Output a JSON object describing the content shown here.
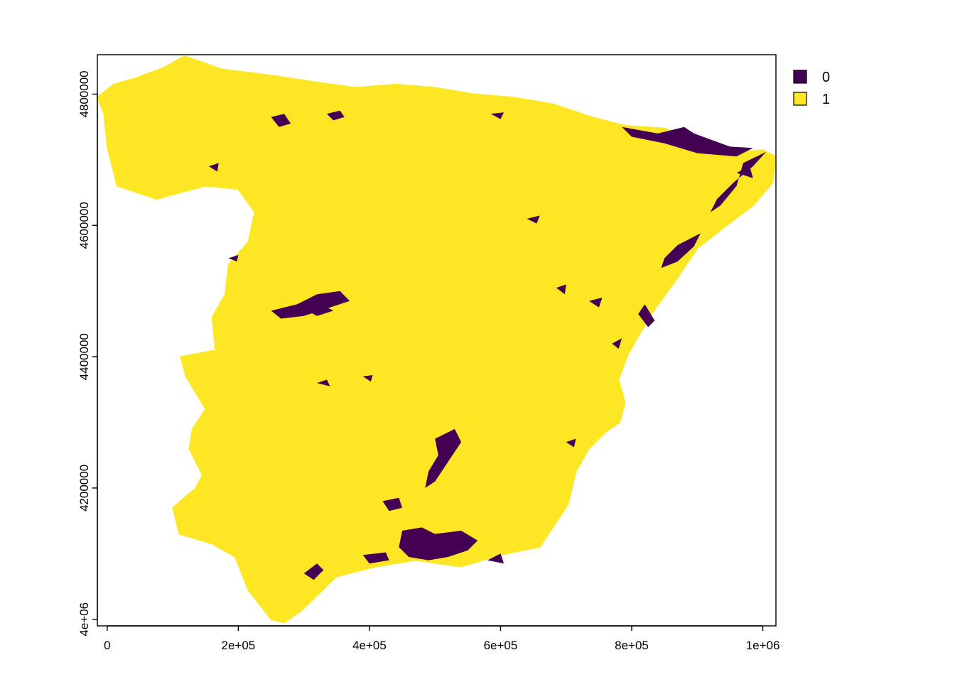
{
  "chart_data": {
    "type": "raster-map",
    "title": "",
    "xlabel": "",
    "ylabel": "",
    "xlim": [
      -15000,
      1020000
    ],
    "ylim": [
      3990000,
      4860000
    ],
    "x_ticks": [
      0,
      200000,
      400000,
      600000,
      800000,
      1000000
    ],
    "x_tick_labels": [
      "0",
      "2e+05",
      "4e+05",
      "6e+05",
      "8e+05",
      "1e+06"
    ],
    "y_ticks": [
      4000000,
      4200000,
      4400000,
      4600000,
      4800000
    ],
    "y_tick_labels": [
      "4e+06",
      "4200000",
      "4400000",
      "4600000",
      "4800000"
    ],
    "legend_position": "top-right",
    "classes": [
      {
        "value": 0,
        "label": "0",
        "color": "#440154"
      },
      {
        "value": 1,
        "label": "1",
        "color": "#FDE725"
      }
    ],
    "dominant_class": 1,
    "outline": [
      [
        85000,
        4840000
      ],
      [
        118000,
        4858000
      ],
      [
        175000,
        4838000
      ],
      [
        255000,
        4828000
      ],
      [
        320000,
        4818000
      ],
      [
        380000,
        4810000
      ],
      [
        440000,
        4815000
      ],
      [
        500000,
        4810000
      ],
      [
        560000,
        4800000
      ],
      [
        620000,
        4795000
      ],
      [
        680000,
        4785000
      ],
      [
        740000,
        4765000
      ],
      [
        790000,
        4752000
      ],
      [
        850000,
        4748000
      ],
      [
        900000,
        4728000
      ],
      [
        965000,
        4712000
      ],
      [
        1000000,
        4715000
      ],
      [
        1020000,
        4705000
      ],
      [
        1015000,
        4665000
      ],
      [
        985000,
        4630000
      ],
      [
        945000,
        4600000
      ],
      [
        900000,
        4565000
      ],
      [
        870000,
        4520000
      ],
      [
        830000,
        4465000
      ],
      [
        795000,
        4405000
      ],
      [
        780000,
        4365000
      ],
      [
        790000,
        4330000
      ],
      [
        782000,
        4300000
      ],
      [
        760000,
        4285000
      ],
      [
        735000,
        4260000
      ],
      [
        715000,
        4225000
      ],
      [
        703000,
        4175000
      ],
      [
        660000,
        4110000
      ],
      [
        600000,
        4098000
      ],
      [
        540000,
        4080000
      ],
      [
        470000,
        4090000
      ],
      [
        410000,
        4080000
      ],
      [
        350000,
        4065000
      ],
      [
        295000,
        4012000
      ],
      [
        270000,
        3995000
      ],
      [
        250000,
        4000000
      ],
      [
        215000,
        4045000
      ],
      [
        195000,
        4095000
      ],
      [
        160000,
        4115000
      ],
      [
        110000,
        4130000
      ],
      [
        100000,
        4170000
      ],
      [
        135000,
        4200000
      ],
      [
        145000,
        4220000
      ],
      [
        125000,
        4260000
      ],
      [
        130000,
        4290000
      ],
      [
        150000,
        4320000
      ],
      [
        120000,
        4370000
      ],
      [
        112000,
        4400000
      ],
      [
        165000,
        4410000
      ],
      [
        160000,
        4460000
      ],
      [
        180000,
        4495000
      ],
      [
        185000,
        4540000
      ],
      [
        215000,
        4575000
      ],
      [
        225000,
        4620000
      ],
      [
        200000,
        4655000
      ],
      [
        150000,
        4660000
      ],
      [
        75000,
        4640000
      ],
      [
        15000,
        4660000
      ],
      [
        0,
        4720000
      ],
      [
        -5000,
        4770000
      ],
      [
        -15000,
        4795000
      ],
      [
        10000,
        4815000
      ],
      [
        45000,
        4825000
      ]
    ],
    "class0_patches": [
      [
        [
          785000,
          4750000
        ],
        [
          840000,
          4740000
        ],
        [
          880000,
          4750000
        ],
        [
          895000,
          4740000
        ],
        [
          950000,
          4720000
        ],
        [
          985000,
          4718000
        ],
        [
          960000,
          4705000
        ],
        [
          900000,
          4710000
        ],
        [
          850000,
          4725000
        ],
        [
          800000,
          4735000
        ]
      ],
      [
        [
          1005000,
          4712000
        ],
        [
          970000,
          4695000
        ],
        [
          960000,
          4660000
        ],
        [
          935000,
          4630000
        ],
        [
          920000,
          4620000
        ],
        [
          930000,
          4640000
        ],
        [
          955000,
          4665000
        ],
        [
          985000,
          4690000
        ]
      ],
      [
        [
          905000,
          4588000
        ],
        [
          870000,
          4570000
        ],
        [
          850000,
          4550000
        ],
        [
          845000,
          4535000
        ],
        [
          870000,
          4545000
        ],
        [
          895000,
          4568000
        ]
      ],
      [
        [
          820000,
          4480000
        ],
        [
          835000,
          4455000
        ],
        [
          825000,
          4445000
        ],
        [
          810000,
          4465000
        ]
      ],
      [
        [
          250000,
          4470000
        ],
        [
          290000,
          4480000
        ],
        [
          320000,
          4495000
        ],
        [
          355000,
          4500000
        ],
        [
          370000,
          4485000
        ],
        [
          340000,
          4475000
        ],
        [
          300000,
          4462000
        ],
        [
          265000,
          4458000
        ]
      ],
      [
        [
          305000,
          4470000
        ],
        [
          330000,
          4478000
        ],
        [
          345000,
          4470000
        ],
        [
          320000,
          4462000
        ]
      ],
      [
        [
          250000,
          4765000
        ],
        [
          270000,
          4770000
        ],
        [
          280000,
          4755000
        ],
        [
          262000,
          4750000
        ]
      ],
      [
        [
          335000,
          4770000
        ],
        [
          355000,
          4775000
        ],
        [
          362000,
          4765000
        ],
        [
          345000,
          4760000
        ]
      ],
      [
        [
          585000,
          4770000
        ],
        [
          605000,
          4772000
        ],
        [
          600000,
          4762000
        ]
      ],
      [
        [
          500000,
          4275000
        ],
        [
          530000,
          4290000
        ],
        [
          540000,
          4270000
        ],
        [
          520000,
          4240000
        ],
        [
          500000,
          4210000
        ],
        [
          485000,
          4200000
        ],
        [
          490000,
          4225000
        ],
        [
          505000,
          4250000
        ]
      ],
      [
        [
          450000,
          4135000
        ],
        [
          480000,
          4140000
        ],
        [
          500000,
          4130000
        ],
        [
          540000,
          4135000
        ],
        [
          565000,
          4120000
        ],
        [
          550000,
          4105000
        ],
        [
          520000,
          4095000
        ],
        [
          490000,
          4090000
        ],
        [
          460000,
          4095000
        ],
        [
          445000,
          4110000
        ]
      ],
      [
        [
          390000,
          4098000
        ],
        [
          425000,
          4102000
        ],
        [
          430000,
          4090000
        ],
        [
          400000,
          4085000
        ]
      ],
      [
        [
          300000,
          4070000
        ],
        [
          320000,
          4085000
        ],
        [
          330000,
          4075000
        ],
        [
          315000,
          4060000
        ]
      ],
      [
        [
          420000,
          4180000
        ],
        [
          445000,
          4185000
        ],
        [
          450000,
          4170000
        ],
        [
          430000,
          4165000
        ]
      ],
      [
        [
          580000,
          4090000
        ],
        [
          600000,
          4100000
        ],
        [
          605000,
          4085000
        ]
      ],
      [
        [
          735000,
          4485000
        ],
        [
          755000,
          4490000
        ],
        [
          750000,
          4475000
        ]
      ],
      [
        [
          685000,
          4505000
        ],
        [
          700000,
          4510000
        ],
        [
          698000,
          4495000
        ]
      ],
      [
        [
          185000,
          4550000
        ],
        [
          200000,
          4555000
        ],
        [
          198000,
          4545000
        ]
      ],
      [
        [
          155000,
          4690000
        ],
        [
          170000,
          4695000
        ],
        [
          168000,
          4682000
        ]
      ],
      [
        [
          320000,
          4360000
        ],
        [
          335000,
          4365000
        ],
        [
          340000,
          4355000
        ]
      ],
      [
        [
          390000,
          4370000
        ],
        [
          405000,
          4372000
        ],
        [
          402000,
          4362000
        ]
      ],
      [
        [
          700000,
          4270000
        ],
        [
          715000,
          4275000
        ],
        [
          712000,
          4262000
        ]
      ],
      [
        [
          640000,
          4610000
        ],
        [
          660000,
          4615000
        ],
        [
          655000,
          4603000
        ]
      ],
      [
        [
          770000,
          4420000
        ],
        [
          785000,
          4428000
        ],
        [
          780000,
          4412000
        ]
      ],
      [
        [
          960000,
          4680000
        ],
        [
          980000,
          4690000
        ],
        [
          985000,
          4672000
        ]
      ]
    ]
  }
}
